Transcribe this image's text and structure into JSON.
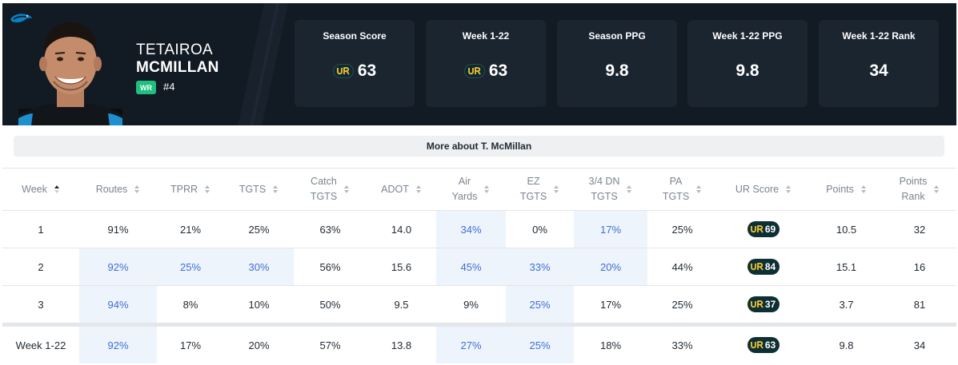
{
  "player": {
    "first_name": "TETAIROA",
    "last_name": "MCMILLAN",
    "position": "WR",
    "jersey": "#4",
    "team_icon": "panther-logo-icon",
    "position_color": "#1fc07e"
  },
  "stat_cards": [
    {
      "label": "Season Score",
      "value": "63",
      "has_ur_logo": true
    },
    {
      "label": "Week 1-22",
      "value": "63",
      "has_ur_logo": true
    },
    {
      "label": "Season PPG",
      "value": "9.8",
      "has_ur_logo": false
    },
    {
      "label": "Week 1-22 PPG",
      "value": "9.8",
      "has_ur_logo": false
    },
    {
      "label": "Week 1-22 Rank",
      "value": "34",
      "has_ur_logo": false
    }
  ],
  "more_button": {
    "label": "More about T. McMillan"
  },
  "table": {
    "headers": [
      {
        "line1": "Week",
        "line2": "",
        "sorted": true
      },
      {
        "line1": "Routes",
        "line2": "",
        "sorted": false
      },
      {
        "line1": "TPRR",
        "line2": "",
        "sorted": false
      },
      {
        "line1": "TGTS",
        "line2": "",
        "sorted": false
      },
      {
        "line1": "Catch",
        "line2": "TGTS",
        "sorted": false
      },
      {
        "line1": "ADOT",
        "line2": "",
        "sorted": false
      },
      {
        "line1": "Air",
        "line2": "Yards",
        "sorted": false
      },
      {
        "line1": "EZ",
        "line2": "TGTS",
        "sorted": false
      },
      {
        "line1": "3/4 DN",
        "line2": "TGTS",
        "sorted": false
      },
      {
        "line1": "PA",
        "line2": "TGTS",
        "sorted": false
      },
      {
        "line1": "UR Score",
        "line2": "",
        "sorted": false
      },
      {
        "line1": "Points",
        "line2": "",
        "sorted": false
      },
      {
        "line1": "Points",
        "line2": "Rank",
        "sorted": false
      }
    ],
    "rows": [
      {
        "cells": [
          "1",
          "91%",
          "21%",
          "25%",
          "63%",
          "14.0",
          "34%",
          "0%",
          "17%",
          "25%",
          "69",
          "10.5",
          "32"
        ],
        "highlight": [
          false,
          false,
          false,
          false,
          false,
          false,
          true,
          false,
          true,
          false,
          false,
          false,
          false
        ]
      },
      {
        "cells": [
          "2",
          "92%",
          "25%",
          "30%",
          "56%",
          "15.6",
          "45%",
          "33%",
          "20%",
          "44%",
          "84",
          "15.1",
          "16"
        ],
        "highlight": [
          false,
          true,
          true,
          true,
          false,
          false,
          true,
          true,
          true,
          false,
          false,
          false,
          false
        ]
      },
      {
        "cells": [
          "3",
          "94%",
          "8%",
          "10%",
          "50%",
          "9.5",
          "9%",
          "25%",
          "17%",
          "25%",
          "37",
          "3.7",
          "81"
        ],
        "highlight": [
          false,
          true,
          false,
          false,
          false,
          false,
          false,
          true,
          false,
          false,
          false,
          false,
          false
        ]
      }
    ],
    "total": {
      "cells": [
        "Week 1-22",
        "92%",
        "17%",
        "20%",
        "57%",
        "13.8",
        "27%",
        "25%",
        "18%",
        "33%",
        "63",
        "9.8",
        "34"
      ],
      "highlight": [
        false,
        true,
        false,
        false,
        false,
        false,
        true,
        true,
        false,
        false,
        false,
        false,
        false
      ]
    }
  },
  "colors": {
    "header_bg": "#121a24",
    "card_bg": "#1b2530",
    "highlight_bg": "#eef4fc",
    "highlight_text": "#3d6fd6",
    "ur_pill": "#0e2f33",
    "ur_accent": "#f2c230"
  }
}
